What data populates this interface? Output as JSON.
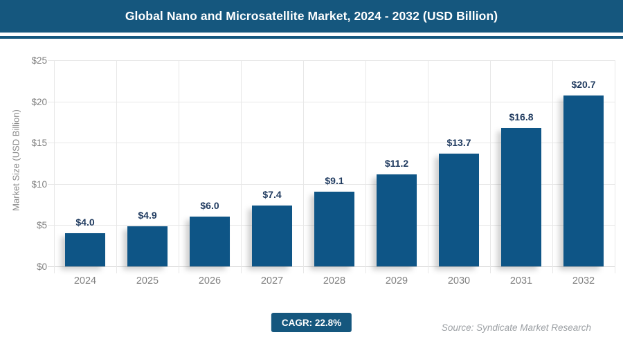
{
  "title": "Global Nano and Microsatellite Market, 2024 - 2032 (USD Billion)",
  "colors": {
    "header_bg": "#15577E",
    "accent_line": "#15577E",
    "bar_fill": "#0E5586",
    "value_label": "#1F3A5F",
    "axis_text": "#808080",
    "gridline": "#E7E7E7",
    "baseline": "#D2D2D2",
    "badge_bg": "#15577E",
    "source_text": "#9B9FA3"
  },
  "chart_data": {
    "type": "bar",
    "title": "Global Nano and Microsatellite Market, 2024 - 2032 (USD Billion)",
    "categories": [
      "2024",
      "2025",
      "2026",
      "2027",
      "2028",
      "2029",
      "2030",
      "2031",
      "2032"
    ],
    "values": [
      4.0,
      4.9,
      6.0,
      7.4,
      9.1,
      11.2,
      13.7,
      16.8,
      20.7
    ],
    "value_labels": [
      "$4.0",
      "$4.9",
      "$6.0",
      "$7.4",
      "$9.1",
      "$11.2",
      "$13.7",
      "$16.8",
      "$20.7"
    ],
    "xlabel": "",
    "ylabel": "Market Size (USD Billion)",
    "ylim": [
      0,
      25
    ],
    "yticks": [
      0,
      5,
      10,
      15,
      20,
      25
    ],
    "ytick_labels": [
      "$0",
      "$5",
      "$10",
      "$15",
      "$20",
      "$25"
    ],
    "grid": true,
    "legend": "none"
  },
  "footer": {
    "cagr_label": "CAGR: 22.8%",
    "source": "Source: Syndicate Market Research"
  }
}
